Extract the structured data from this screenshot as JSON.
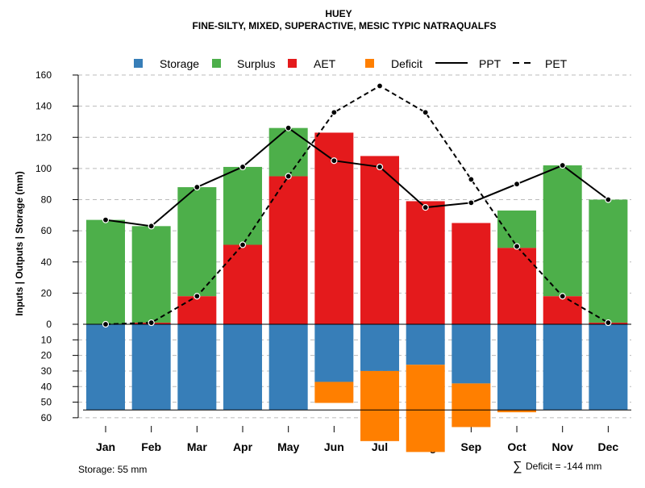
{
  "chart_data": {
    "type": "bar",
    "title": "HUEY",
    "subtitle": "FINE-SILTY, MIXED, SUPERACTIVE, MESIC TYPIC NATRAQUALFS",
    "ylabel": "Inputs | Outputs | Storage    (mm)",
    "ylim_upper": [
      0,
      160
    ],
    "ylim_lower": [
      0,
      60
    ],
    "upper_ticks": [
      0,
      20,
      40,
      60,
      80,
      100,
      120,
      140,
      160
    ],
    "lower_ticks": [
      10,
      20,
      30,
      40,
      50,
      60
    ],
    "grid": true,
    "legend_position": "top",
    "legend": [
      "Storage",
      "Surplus",
      "AET",
      "Deficit",
      "PPT",
      "PET"
    ],
    "colors": {
      "Storage": "#377EB8",
      "Surplus": "#4DAF4A",
      "AET": "#E41A1C",
      "Deficit": "#FF7F00"
    },
    "categories": [
      "Jan",
      "Feb",
      "Mar",
      "Apr",
      "May",
      "Jun",
      "Jul",
      "Aug",
      "Sep",
      "Oct",
      "Nov",
      "Dec"
    ],
    "series": [
      {
        "name": "AET",
        "values": [
          0,
          1,
          18,
          51,
          95,
          123,
          108,
          79,
          65,
          49,
          18,
          1
        ]
      },
      {
        "name": "Surplus",
        "values": [
          67,
          62,
          70,
          50,
          31,
          0,
          0,
          0,
          0,
          24,
          84,
          79
        ]
      },
      {
        "name": "Storage",
        "values": [
          55,
          55,
          55,
          55,
          55,
          37,
          30,
          26,
          38,
          55,
          55,
          55
        ]
      },
      {
        "name": "Deficit",
        "values": [
          0,
          0,
          0,
          0,
          0,
          13.5,
          45,
          56,
          28,
          1.5,
          0,
          0
        ]
      },
      {
        "name": "PPT",
        "values": [
          67,
          63,
          88,
          101,
          126,
          105,
          101,
          75,
          78,
          90,
          102,
          80
        ]
      },
      {
        "name": "PET",
        "values": [
          0,
          1,
          18,
          51,
          95,
          136,
          153,
          136,
          93,
          50,
          18,
          1
        ]
      }
    ],
    "storage_capacity": 55,
    "annotations": {
      "storage": "Storage: 55 mm",
      "deficit": "Deficit = -144 mm",
      "sigma": "∑"
    }
  }
}
